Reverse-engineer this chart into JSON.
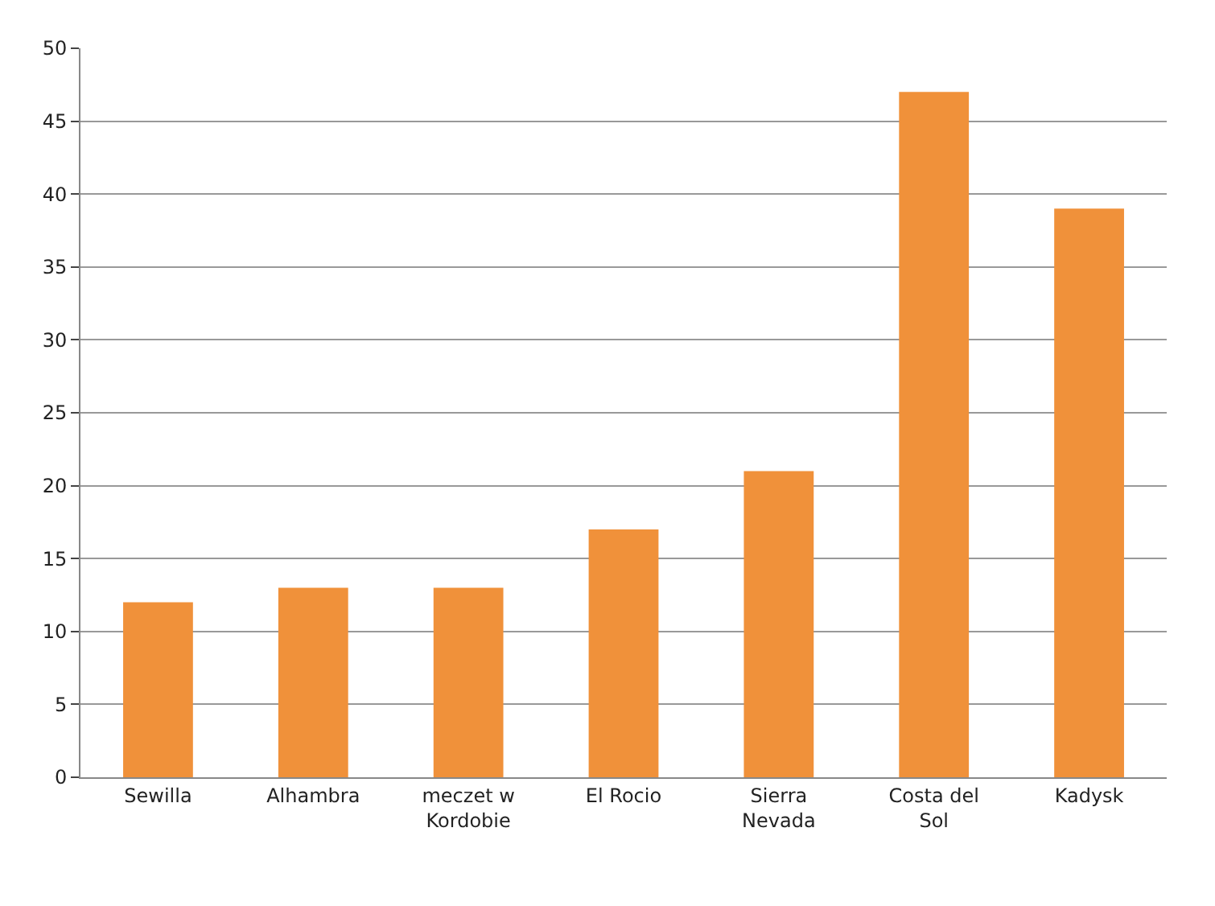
{
  "chart_data": {
    "type": "bar",
    "categories": [
      "Sewilla",
      "Alhambra",
      "meczet w Kordobie",
      "El Rocio",
      "Sierra Nevada",
      "Costa del Sol",
      "Kadysk"
    ],
    "values": [
      12,
      13,
      13,
      17,
      21,
      47,
      39
    ],
    "color": "#f0913a",
    "ylim": [
      0,
      50
    ],
    "yticks": [
      0,
      5,
      10,
      15,
      20,
      25,
      30,
      35,
      40,
      45,
      50
    ],
    "grid": "y"
  }
}
